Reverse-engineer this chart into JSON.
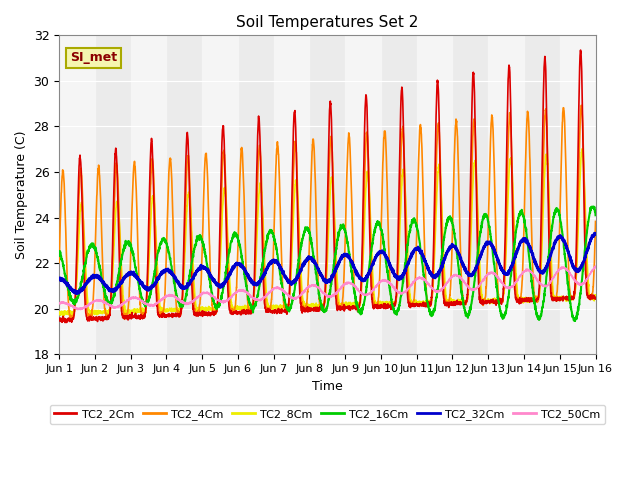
{
  "title": "Soil Temperatures Set 2",
  "xlabel": "Time",
  "ylabel": "Soil Temperature (C)",
  "ylim": [
    18,
    32
  ],
  "xlim": [
    0,
    360
  ],
  "background_color": "#ffffff",
  "plot_bg_color": "#ebebeb",
  "band_light": "#f5f5f5",
  "si_met_label": "SI_met",
  "si_met_color": "#8B0000",
  "si_met_bg": "#f5f5b0",
  "si_met_border": "#aaaa00",
  "xtick_labels": [
    "Jun 1",
    "Jun 2",
    "Jun 3",
    "Jun 4",
    "Jun 5",
    "Jun 6",
    "Jun 7",
    "Jun 8",
    "Jun 9",
    "Jun 10",
    "Jun 11",
    "Jun 12",
    "Jun 13",
    "Jun 14",
    "Jun 15",
    "Jun 16"
  ],
  "xtick_positions": [
    0,
    24,
    48,
    72,
    96,
    120,
    144,
    168,
    192,
    216,
    240,
    264,
    288,
    312,
    336,
    360
  ],
  "legend": [
    {
      "label": "TC2_2Cm",
      "color": "#dd0000"
    },
    {
      "label": "TC2_4Cm",
      "color": "#ff8800"
    },
    {
      "label": "TC2_8Cm",
      "color": "#eeee00"
    },
    {
      "label": "TC2_16Cm",
      "color": "#00cc00"
    },
    {
      "label": "TC2_32Cm",
      "color": "#0000cc"
    },
    {
      "label": "TC2_50Cm",
      "color": "#ff88cc"
    }
  ],
  "line_colors": [
    "#dd0000",
    "#ff8800",
    "#eeee00",
    "#00cc00",
    "#0000cc",
    "#ff88cc"
  ],
  "line_widths": [
    1.2,
    1.2,
    1.2,
    1.5,
    2.0,
    1.2
  ],
  "ytick_vals": [
    18,
    20,
    22,
    24,
    26,
    28,
    30,
    32
  ],
  "n_points": 2881,
  "peak_hour": 14,
  "night_base_start": [
    19.5,
    19.6,
    19.8,
    21.5,
    21.0,
    20.1
  ],
  "night_base_end": [
    20.5,
    20.5,
    20.5,
    22.0,
    22.5,
    21.5
  ],
  "day_peak_start": [
    26.5,
    26.0,
    24.5,
    22.5,
    21.5,
    20.5
  ],
  "day_peak_end": [
    31.5,
    29.0,
    27.0,
    25.0,
    23.0,
    21.8
  ],
  "green_amp_start": 1.2,
  "green_amp_end": 2.5,
  "blue_amp_start": 0.3,
  "blue_amp_end": 0.8,
  "pink_amp_start": 0.15,
  "pink_amp_end": 0.4
}
